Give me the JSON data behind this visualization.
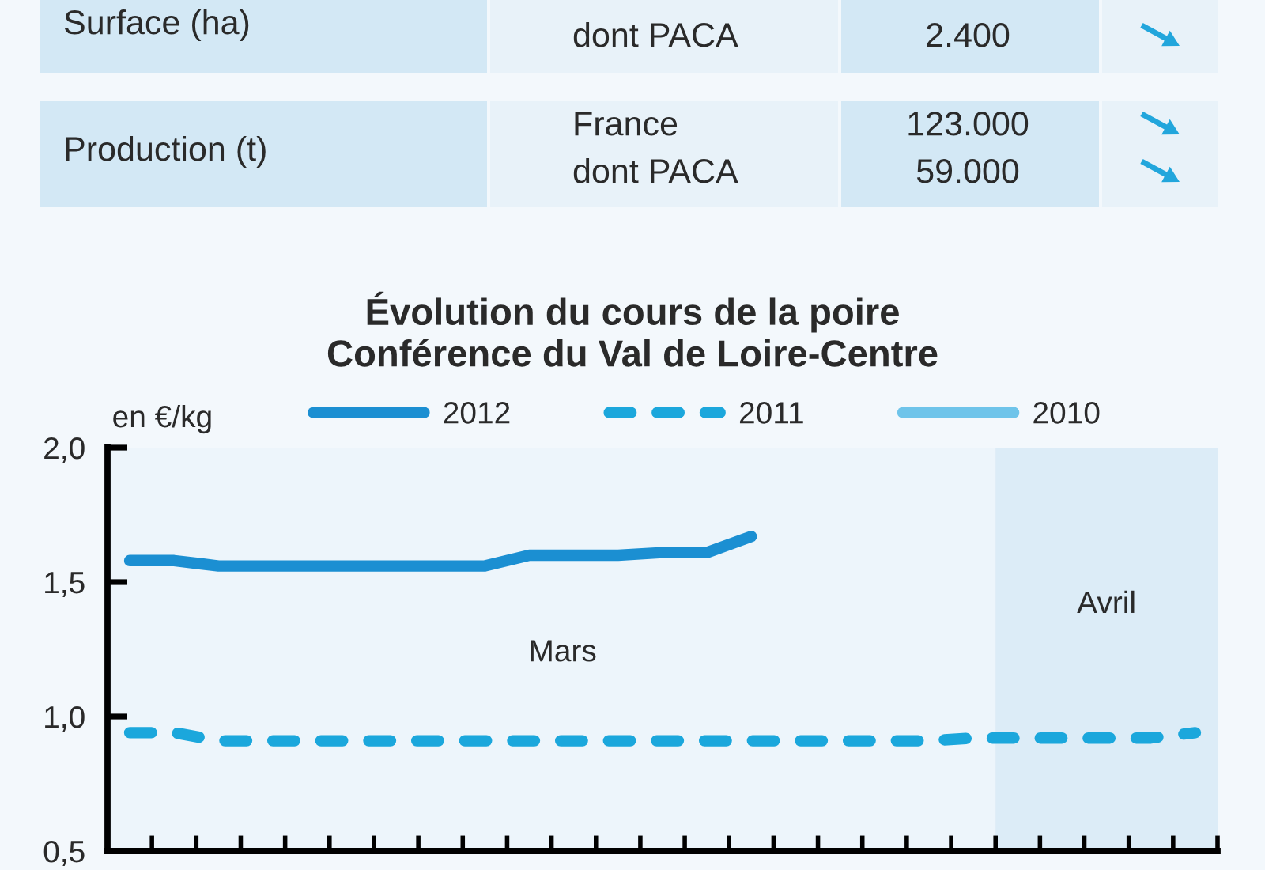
{
  "chart_data": [
    {
      "type": "other",
      "annotations": [
        "Surface (ha)",
        "dont PACA",
        "2.400",
        "Production (t)",
        "France",
        "dont PACA",
        "123.000",
        "59.000"
      ]
    },
    {
      "type": "line",
      "title": "Évolution du cours de la poire\nConférence du Val de Loire-Centre",
      "ylabel": "en €/kg",
      "categories": [
        null,
        null,
        null,
        null,
        null,
        null,
        null,
        null,
        null,
        null,
        null,
        null,
        null,
        null,
        null,
        null,
        null,
        null,
        null,
        null,
        null,
        null,
        null,
        null,
        null
      ],
      "series": [
        {
          "name": "2012",
          "color": "#1b8fd2",
          "line_style": "solid",
          "values": [
            1.58,
            1.58,
            1.56,
            1.56,
            1.56,
            1.56,
            1.56,
            1.56,
            1.56,
            1.6,
            1.6,
            1.6,
            1.61,
            1.61,
            1.67,
            null,
            null,
            null,
            null,
            null,
            null,
            null,
            null,
            null,
            null
          ]
        },
        {
          "name": "2011",
          "color": "#1ba7dc",
          "line_style": "dashed",
          "values": [
            0.94,
            0.94,
            0.91,
            0.91,
            0.91,
            0.91,
            0.91,
            0.91,
            0.91,
            0.91,
            0.91,
            0.91,
            0.91,
            0.91,
            0.91,
            0.91,
            0.91,
            0.91,
            0.91,
            0.92,
            0.92,
            0.92,
            0.92,
            0.92,
            0.94
          ]
        },
        {
          "name": "2010",
          "color": "#6ec4ea",
          "line_style": "solid",
          "values": [
            null,
            null,
            null,
            null,
            null,
            null,
            null,
            null,
            null,
            null,
            null,
            null,
            null,
            null,
            null,
            null,
            null,
            null,
            null,
            null,
            null,
            null,
            null,
            null,
            null
          ]
        }
      ],
      "ylim": [
        0.5,
        2.0
      ],
      "yticks": [
        {
          "value": 0.5,
          "label": "0,5"
        },
        {
          "value": 1.0,
          "label": "1,0"
        },
        {
          "value": 1.5,
          "label": "1,5"
        },
        {
          "value": 2.0,
          "label": "2,0"
        }
      ],
      "annotations": [
        "Mars",
        "Avril"
      ],
      "legend": "top"
    }
  ]
}
